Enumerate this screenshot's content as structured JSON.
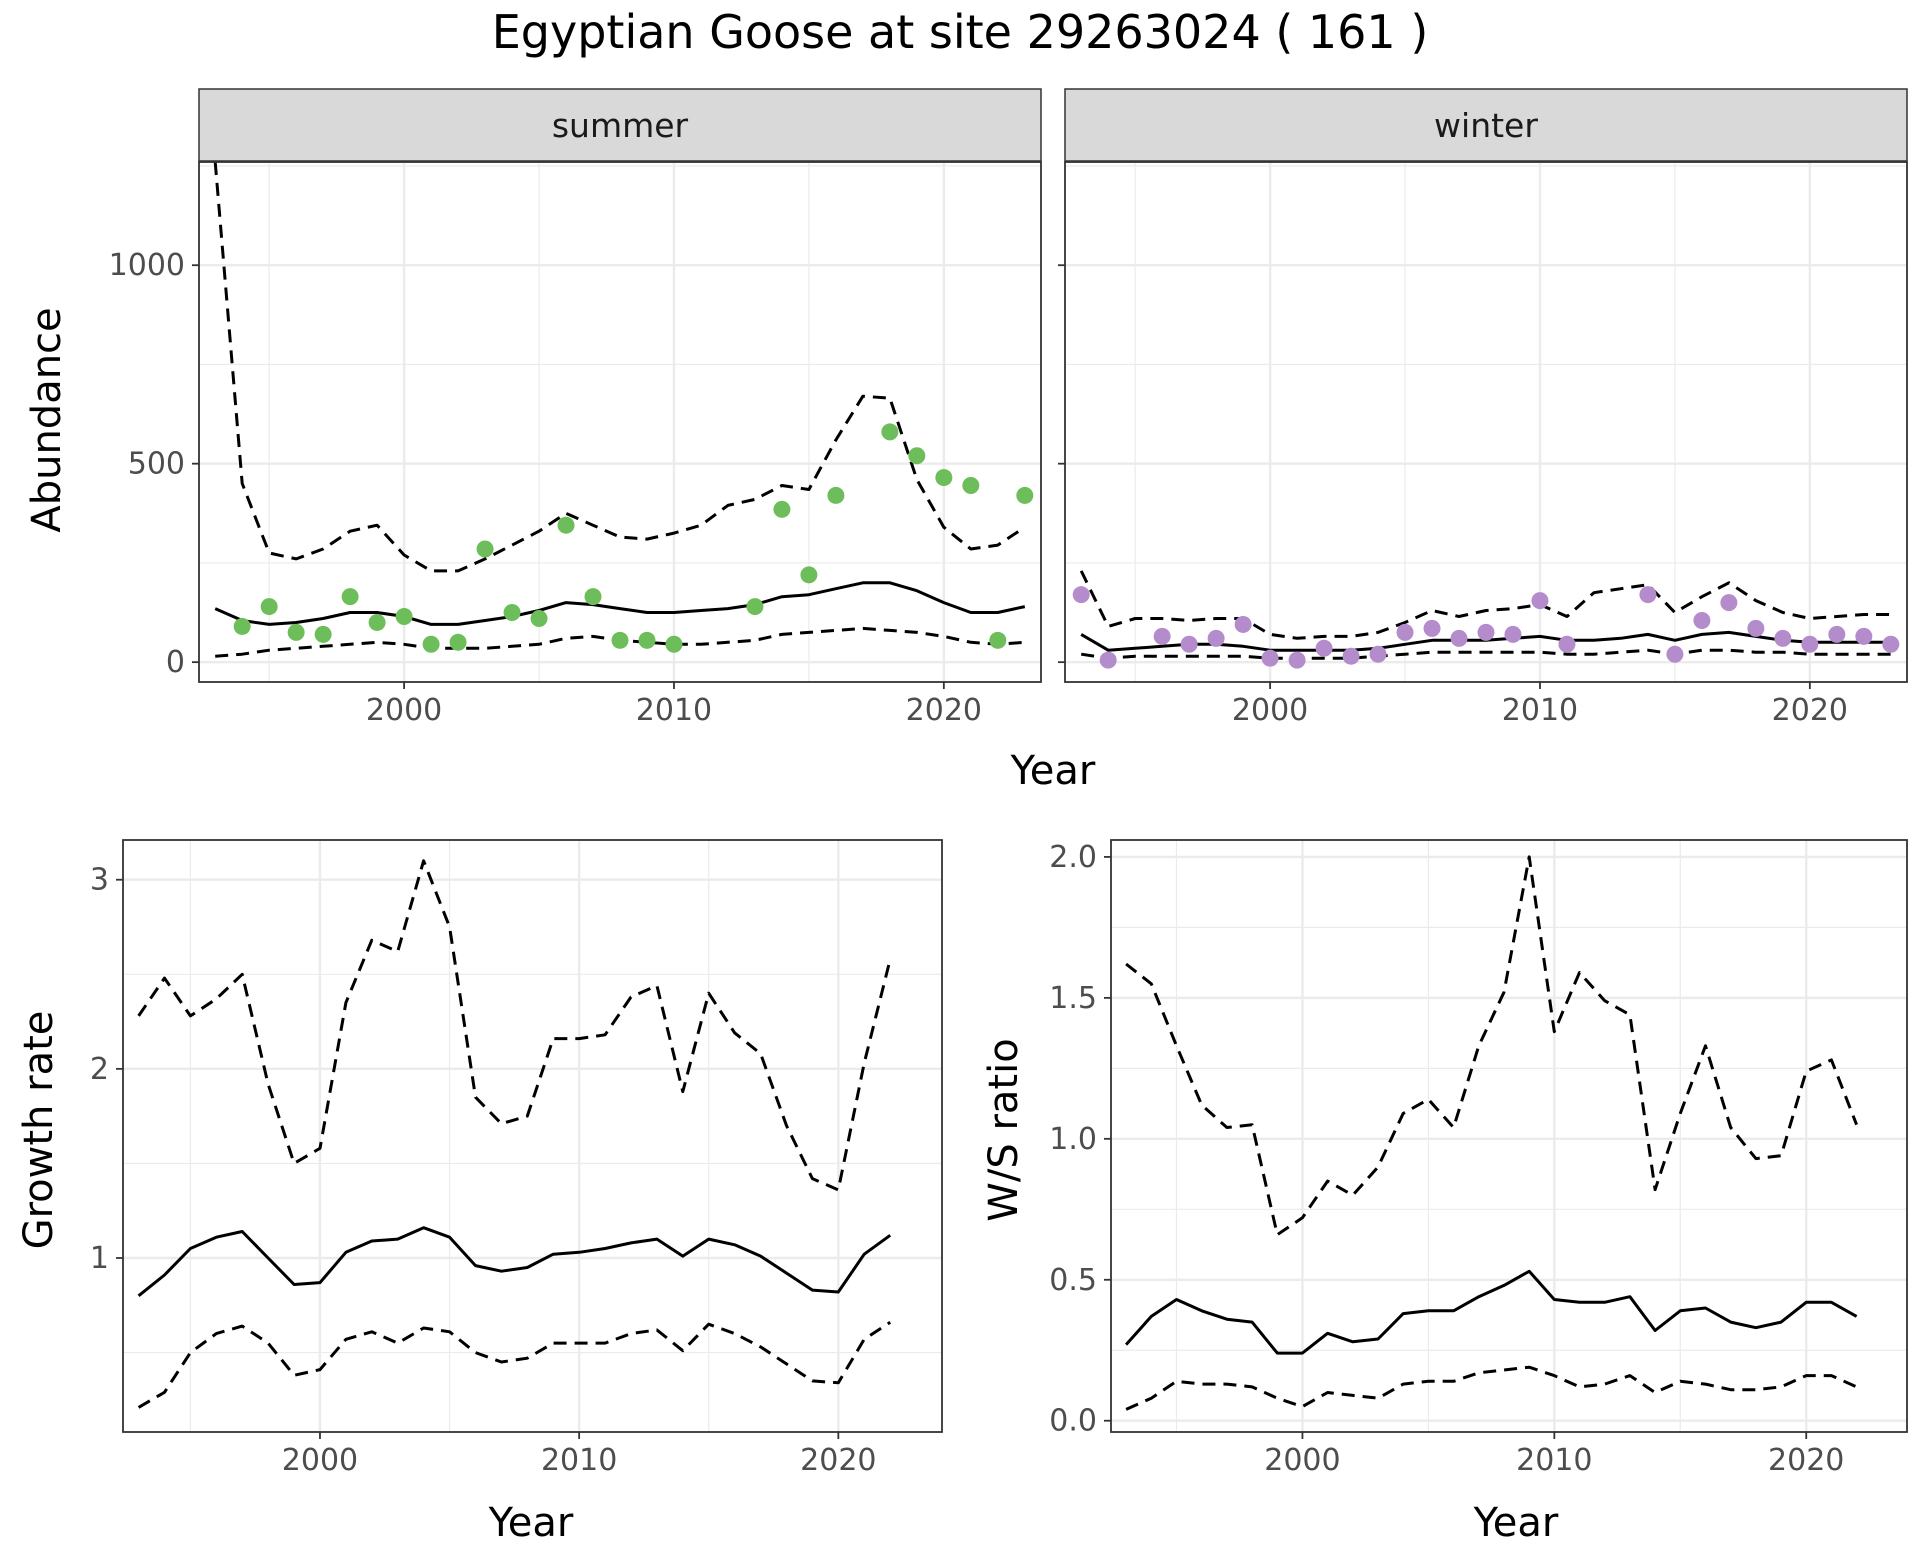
{
  "title": "Egyptian Goose at site 29263024 ( 161 )",
  "colors": {
    "summer_points": "#6DBE5A",
    "winter_points": "#B48CCB",
    "lines": "#000000",
    "grid": "#EBEBEB",
    "strip_fill": "#D9D9D9"
  },
  "chart_data": [
    {
      "type": "line",
      "facet": "summer",
      "xlabel": "Year",
      "ylabel": "Abundance",
      "xlim": [
        1992.4,
        2023.6
      ],
      "ylim": [
        -50,
        1260
      ],
      "xticks": [
        2000,
        2010,
        2020
      ],
      "yticks": [
        0,
        500,
        1000
      ],
      "grid": true,
      "x": [
        1993,
        1994,
        1995,
        1996,
        1997,
        1998,
        1999,
        2000,
        2001,
        2002,
        2003,
        2004,
        2005,
        2006,
        2007,
        2008,
        2009,
        2010,
        2011,
        2012,
        2013,
        2014,
        2015,
        2016,
        2017,
        2018,
        2019,
        2020,
        2021,
        2022,
        2023
      ],
      "series": [
        {
          "line": "solid",
          "values": [
            135,
            105,
            95,
            100,
            110,
            125,
            125,
            115,
            95,
            95,
            105,
            115,
            130,
            150,
            145,
            135,
            125,
            125,
            130,
            135,
            145,
            165,
            170,
            185,
            200,
            200,
            180,
            150,
            125,
            125,
            140
          ]
        },
        {
          "line": "dashed",
          "values": [
            1260,
            450,
            275,
            260,
            285,
            330,
            345,
            270,
            230,
            230,
            260,
            295,
            330,
            375,
            345,
            315,
            310,
            325,
            345,
            395,
            410,
            445,
            435,
            560,
            670,
            665,
            460,
            340,
            285,
            295,
            340
          ]
        },
        {
          "line": "dashed",
          "values": [
            15,
            20,
            30,
            35,
            40,
            45,
            50,
            45,
            35,
            35,
            35,
            40,
            45,
            60,
            65,
            55,
            50,
            45,
            45,
            50,
            55,
            70,
            75,
            80,
            85,
            80,
            75,
            65,
            50,
            45,
            50
          ]
        }
      ],
      "points": {
        "x": [
          1994,
          1995,
          1996,
          1997,
          1998,
          1999,
          2000,
          2001,
          2002,
          2003,
          2004,
          2005,
          2006,
          2007,
          2008,
          2009,
          2010,
          2013,
          2014,
          2015,
          2016,
          2018,
          2019,
          2020,
          2021,
          2022,
          2023
        ],
        "values": [
          90,
          140,
          75,
          70,
          165,
          100,
          115,
          45,
          50,
          285,
          125,
          110,
          345,
          165,
          55,
          55,
          45,
          140,
          385,
          220,
          420,
          580,
          520,
          465,
          445,
          55,
          420
        ]
      }
    },
    {
      "type": "line",
      "facet": "winter",
      "xlabel": "Year",
      "ylabel": "Abundance",
      "xlim": [
        1992.4,
        2023.6
      ],
      "ylim": [
        -50,
        1260
      ],
      "xticks": [
        2000,
        2010,
        2020
      ],
      "yticks": [
        0,
        500,
        1000
      ],
      "grid": true,
      "x": [
        1993,
        1994,
        1995,
        1996,
        1997,
        1998,
        1999,
        2000,
        2001,
        2002,
        2003,
        2004,
        2005,
        2006,
        2007,
        2008,
        2009,
        2010,
        2011,
        2012,
        2013,
        2014,
        2015,
        2016,
        2017,
        2018,
        2019,
        2020,
        2021,
        2022,
        2023
      ],
      "series": [
        {
          "line": "solid",
          "values": [
            70,
            30,
            35,
            40,
            45,
            45,
            40,
            30,
            30,
            30,
            30,
            35,
            45,
            55,
            55,
            55,
            60,
            65,
            55,
            55,
            60,
            70,
            55,
            70,
            75,
            65,
            55,
            50,
            50,
            50,
            50
          ]
        },
        {
          "line": "dashed",
          "values": [
            230,
            90,
            110,
            110,
            105,
            110,
            110,
            70,
            60,
            65,
            65,
            75,
            100,
            130,
            115,
            130,
            135,
            145,
            115,
            175,
            185,
            195,
            125,
            165,
            200,
            155,
            125,
            110,
            115,
            120,
            120
          ]
        },
        {
          "line": "dashed",
          "values": [
            20,
            10,
            15,
            15,
            15,
            15,
            15,
            10,
            10,
            10,
            10,
            15,
            20,
            25,
            25,
            25,
            25,
            25,
            20,
            20,
            25,
            30,
            20,
            30,
            30,
            25,
            25,
            20,
            20,
            20,
            20
          ]
        }
      ],
      "points": {
        "x": [
          1993,
          1994,
          1996,
          1997,
          1998,
          1999,
          2000,
          2001,
          2002,
          2003,
          2004,
          2005,
          2006,
          2007,
          2008,
          2009,
          2010,
          2011,
          2014,
          2015,
          2016,
          2017,
          2018,
          2019,
          2020,
          2021,
          2022,
          2023
        ],
        "values": [
          170,
          5,
          65,
          45,
          60,
          95,
          10,
          5,
          35,
          15,
          20,
          75,
          85,
          60,
          75,
          70,
          155,
          45,
          170,
          20,
          105,
          150,
          85,
          60,
          45,
          70,
          65,
          45
        ]
      }
    },
    {
      "type": "line",
      "xlabel": "Year",
      "ylabel": "Growth rate",
      "xlim": [
        1992.4,
        2024.0
      ],
      "ylim": [
        0.08,
        3.21
      ],
      "xticks": [
        2000,
        2010,
        2020
      ],
      "yticks": [
        1,
        2,
        3
      ],
      "grid": true,
      "x": [
        1993,
        1994,
        1995,
        1996,
        1997,
        1998,
        1999,
        2000,
        2001,
        2002,
        2003,
        2004,
        2005,
        2006,
        2007,
        2008,
        2009,
        2010,
        2011,
        2012,
        2013,
        2014,
        2015,
        2016,
        2017,
        2018,
        2019,
        2020,
        2021,
        2022
      ],
      "series": [
        {
          "line": "solid",
          "values": [
            0.8,
            0.91,
            1.05,
            1.11,
            1.14,
            1.0,
            0.86,
            0.87,
            1.03,
            1.09,
            1.1,
            1.16,
            1.11,
            0.96,
            0.93,
            0.95,
            1.02,
            1.03,
            1.05,
            1.08,
            1.1,
            1.01,
            1.1,
            1.07,
            1.01,
            0.92,
            0.83,
            0.82,
            1.02,
            1.12
          ]
        },
        {
          "line": "dashed",
          "values": [
            2.28,
            2.48,
            2.28,
            2.37,
            2.5,
            1.92,
            1.5,
            1.58,
            2.35,
            2.68,
            2.62,
            3.1,
            2.75,
            1.85,
            1.71,
            1.75,
            2.16,
            2.16,
            2.18,
            2.38,
            2.44,
            1.88,
            2.4,
            2.19,
            2.08,
            1.7,
            1.42,
            1.36,
            2.03,
            2.58
          ]
        },
        {
          "line": "dashed",
          "values": [
            0.21,
            0.29,
            0.5,
            0.6,
            0.64,
            0.55,
            0.38,
            0.41,
            0.57,
            0.61,
            0.55,
            0.63,
            0.61,
            0.5,
            0.45,
            0.47,
            0.55,
            0.55,
            0.55,
            0.6,
            0.62,
            0.51,
            0.65,
            0.6,
            0.53,
            0.44,
            0.35,
            0.34,
            0.57,
            0.66
          ]
        }
      ]
    },
    {
      "type": "line",
      "xlabel": "Year",
      "ylabel": "W/S ratio",
      "xlim": [
        1992.4,
        2024.0
      ],
      "ylim": [
        -0.04,
        2.06
      ],
      "xticks": [
        2000,
        2010,
        2020
      ],
      "yticks": [
        0.0,
        0.5,
        1.0,
        1.5,
        2.0
      ],
      "ytick_labels": [
        "0.0",
        "0.5",
        "1.0",
        "1.5",
        "2.0"
      ],
      "grid": true,
      "x": [
        1993,
        1994,
        1995,
        1996,
        1997,
        1998,
        1999,
        2000,
        2001,
        2002,
        2003,
        2004,
        2005,
        2006,
        2007,
        2008,
        2009,
        2010,
        2011,
        2012,
        2013,
        2014,
        2015,
        2016,
        2017,
        2018,
        2019,
        2020,
        2021,
        2022
      ],
      "series": [
        {
          "line": "solid",
          "values": [
            0.27,
            0.37,
            0.43,
            0.39,
            0.36,
            0.35,
            0.24,
            0.24,
            0.31,
            0.28,
            0.29,
            0.38,
            0.39,
            0.39,
            0.44,
            0.48,
            0.53,
            0.43,
            0.42,
            0.42,
            0.44,
            0.32,
            0.39,
            0.4,
            0.35,
            0.33,
            0.35,
            0.42,
            0.42,
            0.37
          ]
        },
        {
          "line": "dashed",
          "values": [
            1.62,
            1.55,
            1.33,
            1.12,
            1.04,
            1.05,
            0.66,
            0.72,
            0.85,
            0.8,
            0.9,
            1.09,
            1.14,
            1.04,
            1.33,
            1.52,
            2.0,
            1.38,
            1.59,
            1.49,
            1.44,
            0.82,
            1.09,
            1.33,
            1.04,
            0.93,
            0.94,
            1.24,
            1.28,
            1.05
          ]
        },
        {
          "line": "dashed",
          "values": [
            0.04,
            0.08,
            0.14,
            0.13,
            0.13,
            0.12,
            0.08,
            0.05,
            0.1,
            0.09,
            0.08,
            0.13,
            0.14,
            0.14,
            0.17,
            0.18,
            0.19,
            0.16,
            0.12,
            0.13,
            0.16,
            0.1,
            0.14,
            0.13,
            0.11,
            0.11,
            0.12,
            0.16,
            0.16,
            0.12
          ]
        }
      ]
    }
  ],
  "panels": {
    "summer": {
      "strip": "summer"
    },
    "winter": {
      "strip": "winter"
    }
  }
}
